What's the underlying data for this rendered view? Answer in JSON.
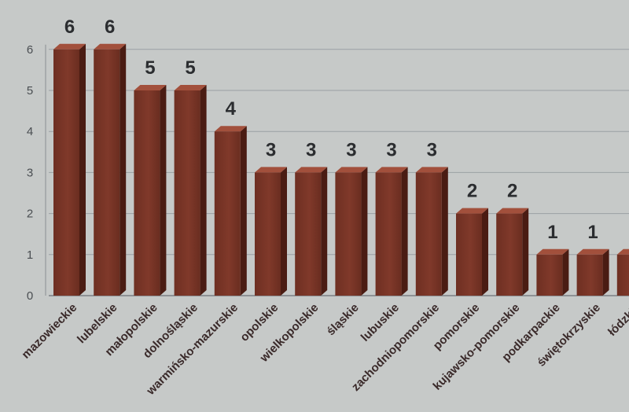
{
  "chart_data": {
    "type": "bar",
    "title": "",
    "xlabel": "",
    "ylabel": "",
    "ylim": [
      0,
      6
    ],
    "yticks": [
      0,
      1,
      2,
      3,
      4,
      5,
      6
    ],
    "grid": true,
    "bar_color": "#7a3626",
    "categories": [
      "mazowieckie",
      "lubelskie",
      "małopolskie",
      "dolnośląskie",
      "warmińsko-mazurskie",
      "opolskie",
      "wielkopolskie",
      "śląskie",
      "lubuskie",
      "zachodniopomorskie",
      "pomorskie",
      "kujawsko-pomorskie",
      "podkarpackie",
      "świętokrzyskie",
      "łódzkie"
    ],
    "values": [
      6,
      6,
      5,
      5,
      4,
      3,
      3,
      3,
      3,
      3,
      2,
      2,
      1,
      1,
      1
    ]
  }
}
